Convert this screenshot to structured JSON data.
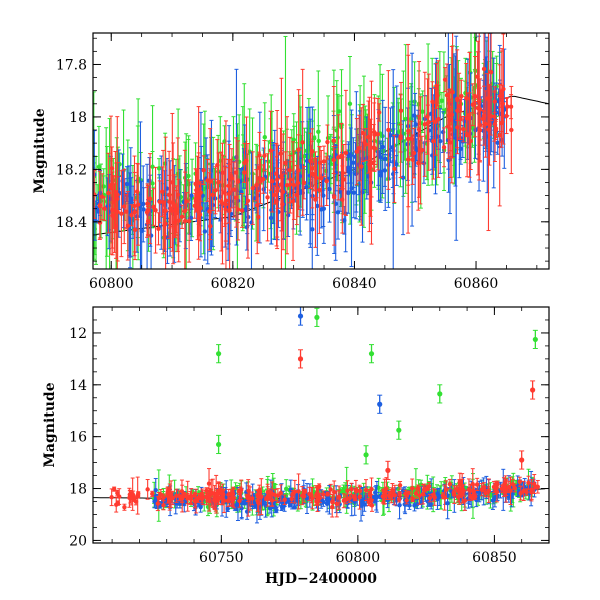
{
  "chart_data": [
    {
      "type": "scatter",
      "xlabel": "",
      "ylabel": "Magnitude",
      "xlim": [
        60797,
        60872
      ],
      "ylim": [
        18.58,
        17.68
      ],
      "y_inverted": true,
      "x_ticks": [
        60800,
        60820,
        60840,
        60860
      ],
      "x_tick_labels": [
        "60800",
        "60820",
        "60840",
        "60860"
      ],
      "y_ticks": [
        17.8,
        18,
        18.2,
        18.4
      ],
      "y_tick_labels": [
        "17.8",
        "18",
        "18.2",
        "18.4"
      ],
      "grid": false,
      "error_bars": true,
      "series": [
        {
          "color": "#ff3b30",
          "x_range": [
            60797,
            60866
          ],
          "y_segments": [
            [
              60797,
              18.32
            ],
            [
              60812,
              18.35
            ],
            [
              60816,
              18.28
            ],
            [
              60838,
              18.2
            ],
            [
              60840,
              18.15
            ],
            [
              60850,
              18.1
            ],
            [
              60853,
              18.0
            ],
            [
              60866,
              17.95
            ]
          ]
        },
        {
          "color": "#1e5fe0",
          "x_range": [
            60797,
            60865
          ],
          "y_segments": [
            [
              60797,
              18.32
            ],
            [
              60812,
              18.38
            ],
            [
              60816,
              18.3
            ],
            [
              60838,
              18.25
            ],
            [
              60840,
              18.2
            ],
            [
              60850,
              18.12
            ],
            [
              60853,
              18.03
            ],
            [
              60865,
              17.97
            ]
          ]
        },
        {
          "color": "#33e033",
          "x_range": [
            60797,
            60864
          ],
          "y_segments": [
            [
              60797,
              18.3
            ],
            [
              60812,
              18.3
            ],
            [
              60816,
              18.25
            ],
            [
              60838,
              18.15
            ],
            [
              60840,
              18.15
            ],
            [
              60850,
              18.05
            ],
            [
              60853,
              18.0
            ],
            [
              60864,
              17.92
            ]
          ]
        }
      ],
      "model_curve": {
        "color": "#000000",
        "points": [
          [
            60797,
            18.45
          ],
          [
            60820,
            18.38
          ],
          [
            60840,
            18.2
          ],
          [
            60855,
            18.0
          ],
          [
            60866,
            17.92
          ],
          [
            60872,
            17.95
          ]
        ]
      }
    },
    {
      "type": "scatter",
      "xlabel": "HJD−2400000",
      "ylabel": "Magnitude",
      "xlim": [
        60703,
        60870
      ],
      "ylim": [
        20.1,
        11.0
      ],
      "y_inverted": true,
      "x_ticks": [
        60750,
        60800,
        60850
      ],
      "x_tick_labels": [
        "60750",
        "60800",
        "60850"
      ],
      "y_ticks": [
        12,
        14,
        16,
        18,
        20
      ],
      "y_tick_labels": [
        "12",
        "14",
        "16",
        "18",
        "20"
      ],
      "grid": false,
      "error_bars": true,
      "series": [
        {
          "color": "#ff3b30",
          "x_range": [
            60708,
            60866
          ],
          "baseline": [
            [
              60708,
              18.35
            ],
            [
              60760,
              18.3
            ],
            [
              60800,
              18.3
            ],
            [
              60840,
              18.1
            ],
            [
              60866,
              17.9
            ]
          ],
          "outliers": [
            [
              60779,
              13.0
            ],
            [
              60811,
              17.3
            ],
            [
              60864,
              14.2
            ],
            [
              60860,
              16.9
            ]
          ]
        },
        {
          "color": "#1e5fe0",
          "x_range": [
            60725,
            60865
          ],
          "baseline": [
            [
              60725,
              18.45
            ],
            [
              60780,
              18.5
            ],
            [
              60820,
              18.4
            ],
            [
              60866,
              18.0
            ]
          ],
          "outliers": [
            [
              60779,
              11.35
            ],
            [
              60808,
              14.75
            ]
          ]
        },
        {
          "color": "#33e033",
          "x_range": [
            60725,
            60864
          ],
          "baseline": [
            [
              60725,
              18.4
            ],
            [
              60780,
              18.3
            ],
            [
              60820,
              18.2
            ],
            [
              60866,
              18.0
            ]
          ],
          "outliers": [
            [
              60749,
              12.8
            ],
            [
              60785,
              11.4
            ],
            [
              60805,
              12.8
            ],
            [
              60865,
              12.25
            ],
            [
              60830,
              14.35
            ],
            [
              60749,
              16.3
            ],
            [
              60815,
              15.75
            ],
            [
              60803,
              16.7
            ]
          ]
        }
      ],
      "model_curve": {
        "color": "#000000",
        "points": [
          [
            60703,
            18.35
          ],
          [
            60760,
            18.4
          ],
          [
            60800,
            18.35
          ],
          [
            60840,
            18.2
          ],
          [
            60870,
            18.0
          ]
        ]
      }
    }
  ]
}
